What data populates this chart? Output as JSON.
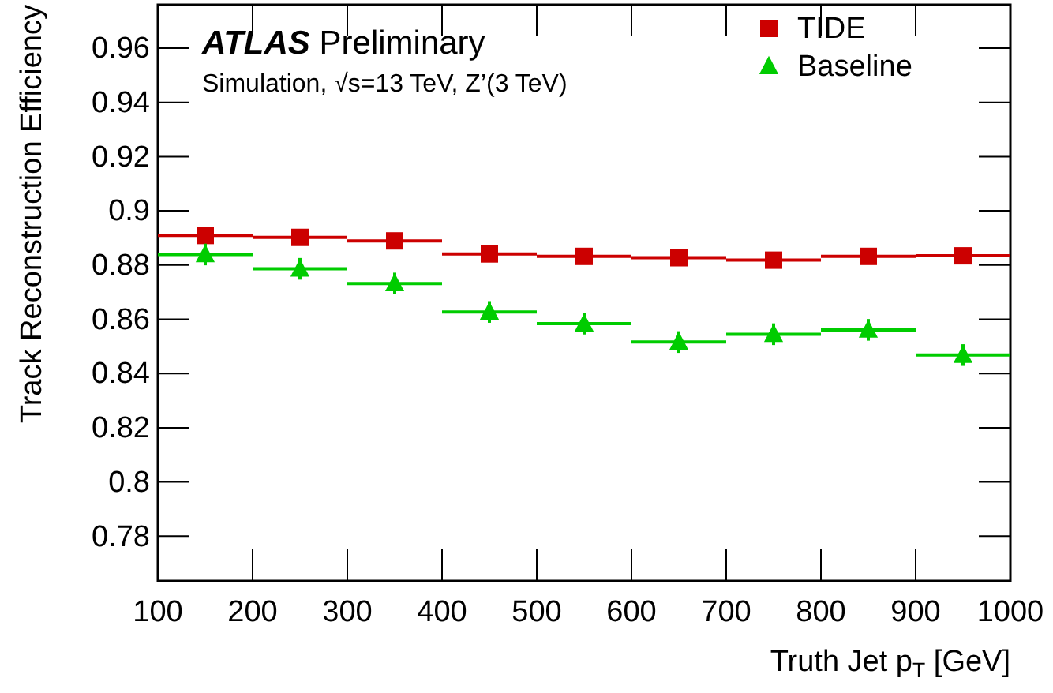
{
  "chart_data": {
    "type": "scatter",
    "xlabel": "Truth Jet p$_{T}$ [GeV]",
    "ylabel": "Track Reconstruction Efficiency",
    "annotations": [
      "ATLAS Preliminary",
      "Simulation, √s=13 TeV, Z’(3 TeV)"
    ],
    "x": [
      150,
      250,
      350,
      450,
      550,
      650,
      750,
      850,
      950
    ],
    "series": [
      {
        "name": "TIDE",
        "color": "#cc0000",
        "marker": "square",
        "values": [
          0.8909,
          0.8902,
          0.8889,
          0.8841,
          0.8832,
          0.8827,
          0.8818,
          0.8832,
          0.8834
        ],
        "xerrors": [
          50,
          50,
          50,
          50,
          50,
          50,
          50,
          50,
          50
        ]
      },
      {
        "name": "Baseline",
        "color": "#00cc00",
        "marker": "triangle",
        "values": [
          0.8839,
          0.8786,
          0.8732,
          0.8627,
          0.8584,
          0.8516,
          0.8545,
          0.8561,
          0.8468
        ],
        "errors": [
          0.004,
          0.004,
          0.004,
          0.004,
          0.004,
          0.004,
          0.004,
          0.004,
          0.004
        ],
        "xerrors": [
          50,
          50,
          50,
          50,
          50,
          50,
          50,
          50,
          50
        ]
      }
    ],
    "xlim": [
      100,
      1000
    ],
    "ylim": [
      0.7635,
      0.976
    ],
    "xticks": [
      100,
      200,
      300,
      400,
      500,
      600,
      700,
      800,
      900,
      1000
    ],
    "yticks": [
      0.78,
      0.8,
      0.82,
      0.84,
      0.86,
      0.88,
      0.9,
      0.92,
      0.94,
      0.96
    ],
    "legend": "top right",
    "grid": false
  }
}
